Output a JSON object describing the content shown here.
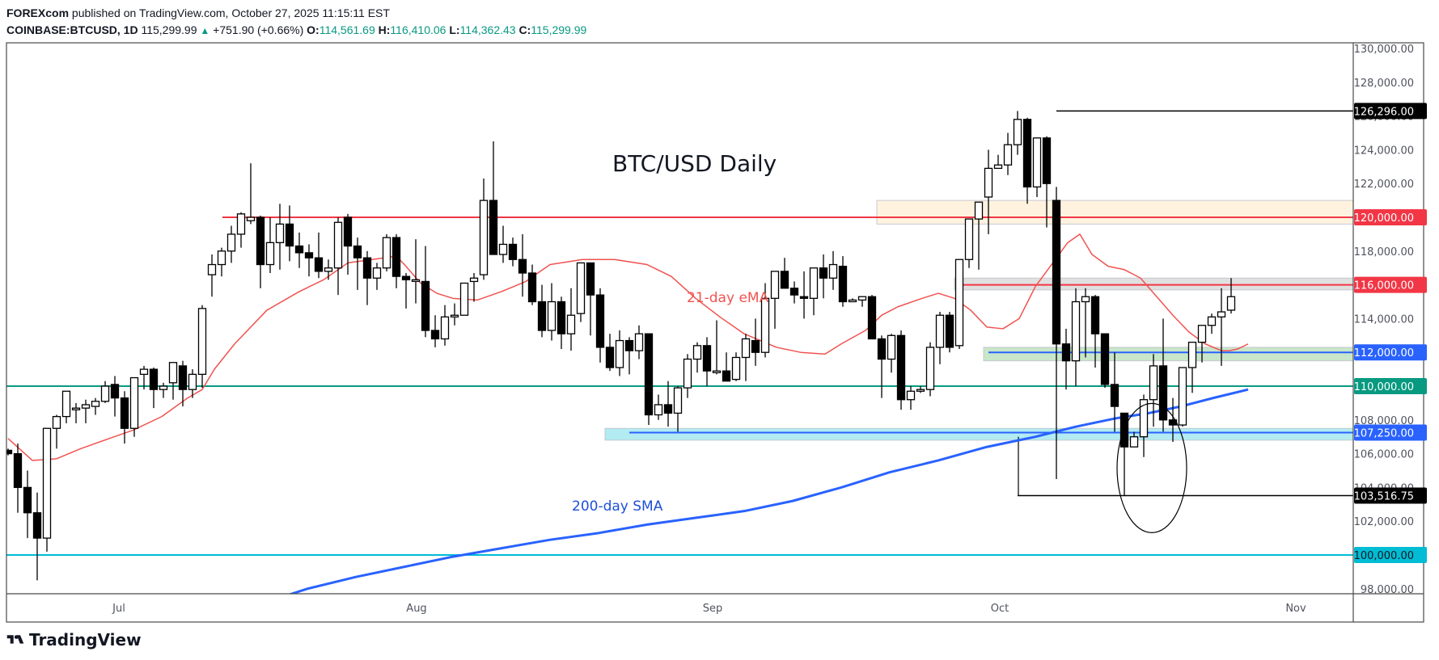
{
  "header": {
    "publisher": "FOREXcom",
    "published_text": " published on TradingView.com, October 27, 2025 11:15:11 EST",
    "symbol": "COINBASE:BTCUSD, 1D",
    "last": "115,299.99",
    "change_icon": "up-triangle-icon",
    "change": "+751.90 (+0.66%)",
    "o_label": "O:",
    "o": "114,561.69",
    "h_label": "H:",
    "h": "116,410.06",
    "l_label": "L:",
    "l": "114,362.43",
    "c_label": "C:",
    "c": "115,299.99"
  },
  "footer": {
    "brand": "TradingView",
    "logo_icon": "tradingview-logo-icon"
  },
  "colors": {
    "ema": "#f05350",
    "sma": "#2962ff",
    "red_level": "#f23645",
    "blue_level": "#2962ff",
    "green_level": "#089981",
    "cyan_level": "#00bcd4",
    "black_level": "#000000",
    "bull_fill": "#ffffff",
    "bear_fill": "#000000",
    "axis_text": "#50535e",
    "grid_border": "#4a4a4a"
  },
  "chart_data": {
    "type": "candlestick",
    "title": "BTC/USD Daily",
    "xlabel": "",
    "ylabel": "",
    "ylim": [
      97500,
      130300
    ],
    "x_ticks": [
      "Jul",
      "Aug",
      "Sep",
      "Oct",
      "Nov"
    ],
    "y_ticks": [
      "130,000.00",
      "128,000.00",
      "126,000.00",
      "124,000.00",
      "122,000.00",
      "120,000.00",
      "118,000.00",
      "116,000.00",
      "114,000.00",
      "112,000.00",
      "110,000.00",
      "108,000.00",
      "106,000.00",
      "104,000.00",
      "102,000.00",
      "100,000.00",
      "98,000.00"
    ],
    "annotations": [
      {
        "text": "BTC/USD Daily",
        "type": "title"
      },
      {
        "text": "21-day eMA",
        "color": "#f05350"
      },
      {
        "text": "200-day SMA",
        "color": "#2962ff"
      }
    ],
    "levels": [
      {
        "price": 126296.0,
        "label": "126,296.00",
        "color": "#000000",
        "style": "swing-high"
      },
      {
        "price": 120000.0,
        "label": "120,000.00",
        "color": "#f23645",
        "style": "resistance"
      },
      {
        "price": 116000.0,
        "label": "116,000.00",
        "color": "#f23645",
        "style": "resistance"
      },
      {
        "price": 112000.0,
        "label": "112,000.00",
        "color": "#2962ff",
        "style": "support"
      },
      {
        "price": 110000.0,
        "label": "110,000.00",
        "color": "#089981",
        "style": "support"
      },
      {
        "price": 107250.0,
        "label": "107,250.00",
        "color": "#2962ff",
        "style": "support"
      },
      {
        "price": 103516.75,
        "label": "103,516.75",
        "color": "#000000",
        "style": "swing-low"
      },
      {
        "price": 100000.0,
        "label": "100,000.00",
        "color": "#00bcd4",
        "style": "support"
      }
    ],
    "zones": [
      {
        "from": 119600,
        "to": 121000,
        "color": "#fff3e0",
        "start_index": 90
      },
      {
        "from": 115700,
        "to": 116400,
        "color": "#e0e0e0",
        "start_index": 98
      },
      {
        "from": 111500,
        "to": 112300,
        "color": "#c8e6c9",
        "start_index": 101
      },
      {
        "from": 106800,
        "to": 107500,
        "color": "#b2ebf2",
        "start_index": 62
      }
    ],
    "ohlc": [
      [
        106200,
        106300,
        105900,
        106000
      ],
      [
        106000,
        106600,
        102500,
        104000
      ],
      [
        104000,
        105000,
        101000,
        102500
      ],
      [
        102500,
        103700,
        98500,
        101000
      ],
      [
        101000,
        106800,
        100200,
        107500
      ],
      [
        107500,
        108300,
        106300,
        108200
      ],
      [
        108200,
        109400,
        107800,
        109700
      ],
      [
        108600,
        109000,
        107800,
        108700
      ],
      [
        108700,
        109200,
        107800,
        108900
      ],
      [
        108800,
        109300,
        108300,
        109100
      ],
      [
        109100,
        110300,
        109000,
        110000
      ],
      [
        110100,
        110600,
        108200,
        109300
      ],
      [
        109300,
        109700,
        106600,
        107500
      ],
      [
        107500,
        110300,
        107000,
        110500
      ],
      [
        110700,
        111200,
        109800,
        111000
      ],
      [
        111000,
        111100,
        108700,
        109800
      ],
      [
        109800,
        110200,
        109300,
        110000
      ],
      [
        110200,
        111000,
        109200,
        111400
      ],
      [
        111200,
        111500,
        108800,
        109800
      ],
      [
        109800,
        111000,
        109300,
        110700
      ],
      [
        110700,
        114800,
        109900,
        114600
      ],
      [
        116600,
        117800,
        115300,
        117200
      ],
      [
        117200,
        118200,
        116500,
        118000
      ],
      [
        118000,
        119500,
        117300,
        119000
      ],
      [
        119000,
        120300,
        118200,
        120200
      ],
      [
        119800,
        123200,
        119600,
        120000
      ],
      [
        120000,
        120100,
        115800,
        117200
      ],
      [
        117200,
        120000,
        116700,
        118500
      ],
      [
        118500,
        120800,
        116900,
        119600
      ],
      [
        119600,
        120700,
        117400,
        118300
      ],
      [
        118300,
        119100,
        117000,
        117900
      ],
      [
        117900,
        118400,
        116500,
        117600
      ],
      [
        117600,
        119100,
        116400,
        116800
      ],
      [
        116800,
        117500,
        116300,
        117000
      ],
      [
        117000,
        120000,
        115400,
        119700
      ],
      [
        120000,
        120200,
        116600,
        118300
      ],
      [
        118300,
        118800,
        115700,
        117600
      ],
      [
        117600,
        118000,
        114800,
        116400
      ],
      [
        116400,
        117300,
        115700,
        117000
      ],
      [
        117000,
        119000,
        116800,
        118800
      ],
      [
        118800,
        119000,
        115800,
        116500
      ],
      [
        116500,
        116700,
        114600,
        116300
      ],
      [
        116300,
        118700,
        114900,
        116300
      ],
      [
        116200,
        118300,
        112900,
        113300
      ],
      [
        113300,
        114200,
        112300,
        112800
      ],
      [
        112800,
        114800,
        112400,
        114100
      ],
      [
        114100,
        114900,
        113600,
        114200
      ],
      [
        114200,
        116000,
        114200,
        116100
      ],
      [
        116200,
        116700,
        115000,
        116400
      ],
      [
        116600,
        122300,
        116300,
        121000
      ],
      [
        121000,
        124500,
        118600,
        117800
      ],
      [
        117800,
        119500,
        117300,
        118400
      ],
      [
        118400,
        118800,
        117100,
        117500
      ],
      [
        117500,
        119000,
        115300,
        116700
      ],
      [
        116700,
        117200,
        114800,
        115000
      ],
      [
        115000,
        116000,
        112900,
        113300
      ],
      [
        113300,
        116100,
        112700,
        115000
      ],
      [
        115000,
        115300,
        112200,
        113100
      ],
      [
        113100,
        115800,
        112100,
        114200
      ],
      [
        114300,
        117200,
        113800,
        117300
      ],
      [
        117300,
        117300,
        113000,
        115400
      ],
      [
        115400,
        115800,
        111400,
        112300
      ],
      [
        112300,
        113100,
        110900,
        111100
      ],
      [
        111100,
        113300,
        110600,
        112700
      ],
      [
        112700,
        112900,
        110700,
        112100
      ],
      [
        112100,
        113600,
        111600,
        113100
      ],
      [
        113100,
        113100,
        107700,
        108300
      ],
      [
        108300,
        109500,
        108000,
        108900
      ],
      [
        108900,
        110300,
        107600,
        108400
      ],
      [
        108400,
        110000,
        107300,
        109900
      ],
      [
        109900,
        111900,
        109300,
        111600
      ],
      [
        111600,
        112600,
        110800,
        112400
      ],
      [
        112400,
        112900,
        110000,
        110900
      ],
      [
        110800,
        113900,
        110700,
        110900
      ],
      [
        110900,
        112000,
        110400,
        110300
      ],
      [
        110400,
        112000,
        110300,
        111700
      ],
      [
        111700,
        113100,
        110300,
        112800
      ],
      [
        112700,
        114000,
        111200,
        112000
      ],
      [
        112000,
        116100,
        111700,
        115200
      ],
      [
        115200,
        115800,
        113400,
        116800
      ],
      [
        116800,
        117600,
        116000,
        115800
      ],
      [
        115800,
        116200,
        114900,
        115400
      ],
      [
        115300,
        116800,
        114000,
        115200
      ],
      [
        115200,
        116900,
        114200,
        117000
      ],
      [
        117000,
        117800,
        115200,
        116400
      ],
      [
        116400,
        118000,
        115700,
        117200
      ],
      [
        117100,
        117700,
        114700,
        115000
      ],
      [
        115000,
        115200,
        115000,
        115100
      ],
      [
        115100,
        115200,
        114700,
        115300
      ],
      [
        115300,
        115400,
        113100,
        112800
      ],
      [
        112800,
        113000,
        109300,
        111600
      ],
      [
        111600,
        113100,
        110800,
        113000
      ],
      [
        113000,
        113300,
        108600,
        109200
      ],
      [
        109200,
        110000,
        108600,
        109700
      ],
      [
        109700,
        110000,
        109600,
        109800
      ],
      [
        109800,
        112600,
        109400,
        112300
      ],
      [
        112300,
        114400,
        111300,
        114200
      ],
      [
        114200,
        114400,
        112000,
        112300
      ],
      [
        112400,
        117500,
        112200,
        117500
      ],
      [
        117500,
        118500,
        117000,
        119900
      ],
      [
        119900,
        120900,
        116900,
        120900
      ],
      [
        121200,
        124000,
        119000,
        122900
      ],
      [
        122900,
        123000,
        123700,
        123100
      ],
      [
        123100,
        125000,
        122500,
        124300
      ],
      [
        124300,
        126296,
        123700,
        125800
      ],
      [
        125800,
        125900,
        120800,
        121800
      ],
      [
        121800,
        124300,
        121200,
        124700
      ],
      [
        124700,
        124800,
        119400,
        122000
      ],
      [
        121000,
        121800,
        104500,
        112500
      ],
      [
        112500,
        113400,
        109800,
        111500
      ],
      [
        111500,
        115800,
        110000,
        115000
      ],
      [
        115000,
        115800,
        111700,
        115300
      ],
      [
        115300,
        115400,
        111100,
        113100
      ],
      [
        113100,
        113100,
        109900,
        110100
      ],
      [
        110100,
        112000,
        107300,
        108800
      ],
      [
        108400,
        108400,
        103517,
        106400
      ],
      [
        106400,
        107300,
        106400,
        107000
      ],
      [
        107000,
        109500,
        105800,
        109200
      ],
      [
        109200,
        111900,
        107600,
        111200
      ],
      [
        111200,
        114000,
        107300,
        108000
      ],
      [
        108000,
        109300,
        106700,
        107700
      ],
      [
        107700,
        111000,
        107600,
        111100
      ],
      [
        111100,
        112100,
        109600,
        112600
      ],
      [
        112600,
        113100,
        111400,
        113600
      ],
      [
        113600,
        114300,
        113100,
        114100
      ],
      [
        114100,
        115800,
        111200,
        114400
      ],
      [
        114500,
        116400,
        114300,
        115300
      ]
    ],
    "ema21": [
      [
        10,
        106900
      ],
      [
        40,
        105600
      ],
      [
        70,
        105700
      ],
      [
        100,
        106300
      ],
      [
        135,
        106900
      ],
      [
        165,
        107400
      ],
      [
        200,
        108200
      ],
      [
        232,
        109300
      ],
      [
        250,
        109800
      ],
      [
        265,
        111000
      ],
      [
        290,
        112500
      ],
      [
        330,
        114500
      ],
      [
        370,
        115600
      ],
      [
        400,
        116300
      ],
      [
        430,
        117300
      ],
      [
        460,
        117500
      ],
      [
        490,
        117700
      ],
      [
        500,
        117200
      ],
      [
        520,
        116100
      ],
      [
        540,
        115500
      ],
      [
        560,
        115200
      ],
      [
        590,
        115100
      ],
      [
        620,
        115600
      ],
      [
        650,
        116200
      ],
      [
        680,
        117200
      ],
      [
        720,
        117500
      ],
      [
        760,
        117500
      ],
      [
        800,
        117200
      ],
      [
        830,
        116500
      ],
      [
        860,
        115200
      ],
      [
        890,
        114100
      ],
      [
        920,
        113100
      ],
      [
        960,
        112300
      ],
      [
        990,
        112000
      ],
      [
        1020,
        111900
      ],
      [
        1040,
        112500
      ],
      [
        1070,
        113300
      ],
      [
        1090,
        114200
      ],
      [
        1110,
        114700
      ],
      [
        1140,
        115200
      ],
      [
        1160,
        115500
      ],
      [
        1180,
        115200
      ],
      [
        1200,
        114500
      ],
      [
        1220,
        113500
      ],
      [
        1240,
        113400
      ],
      [
        1260,
        114000
      ],
      [
        1280,
        115900
      ],
      [
        1300,
        117200
      ],
      [
        1320,
        118500
      ],
      [
        1335,
        119000
      ],
      [
        1350,
        117800
      ],
      [
        1370,
        117100
      ],
      [
        1390,
        116900
      ],
      [
        1410,
        116400
      ],
      [
        1430,
        115300
      ],
      [
        1450,
        114200
      ],
      [
        1470,
        113200
      ],
      [
        1490,
        112500
      ],
      [
        1510,
        112100
      ],
      [
        1520,
        112100
      ],
      [
        1530,
        112200
      ],
      [
        1543,
        112500
      ]
    ],
    "sma200": [
      [
        335,
        97300
      ],
      [
        380,
        98000
      ],
      [
        440,
        98700
      ],
      [
        500,
        99300
      ],
      [
        560,
        99900
      ],
      [
        620,
        100400
      ],
      [
        680,
        100900
      ],
      [
        740,
        101300
      ],
      [
        800,
        101800
      ],
      [
        860,
        102200
      ],
      [
        920,
        102600
      ],
      [
        980,
        103200
      ],
      [
        1040,
        104000
      ],
      [
        1100,
        104900
      ],
      [
        1160,
        105600
      ],
      [
        1220,
        106400
      ],
      [
        1280,
        107000
      ],
      [
        1330,
        107600
      ],
      [
        1380,
        108100
      ],
      [
        1420,
        108400
      ],
      [
        1460,
        108800
      ],
      [
        1500,
        109300
      ],
      [
        1543,
        109800
      ]
    ]
  }
}
